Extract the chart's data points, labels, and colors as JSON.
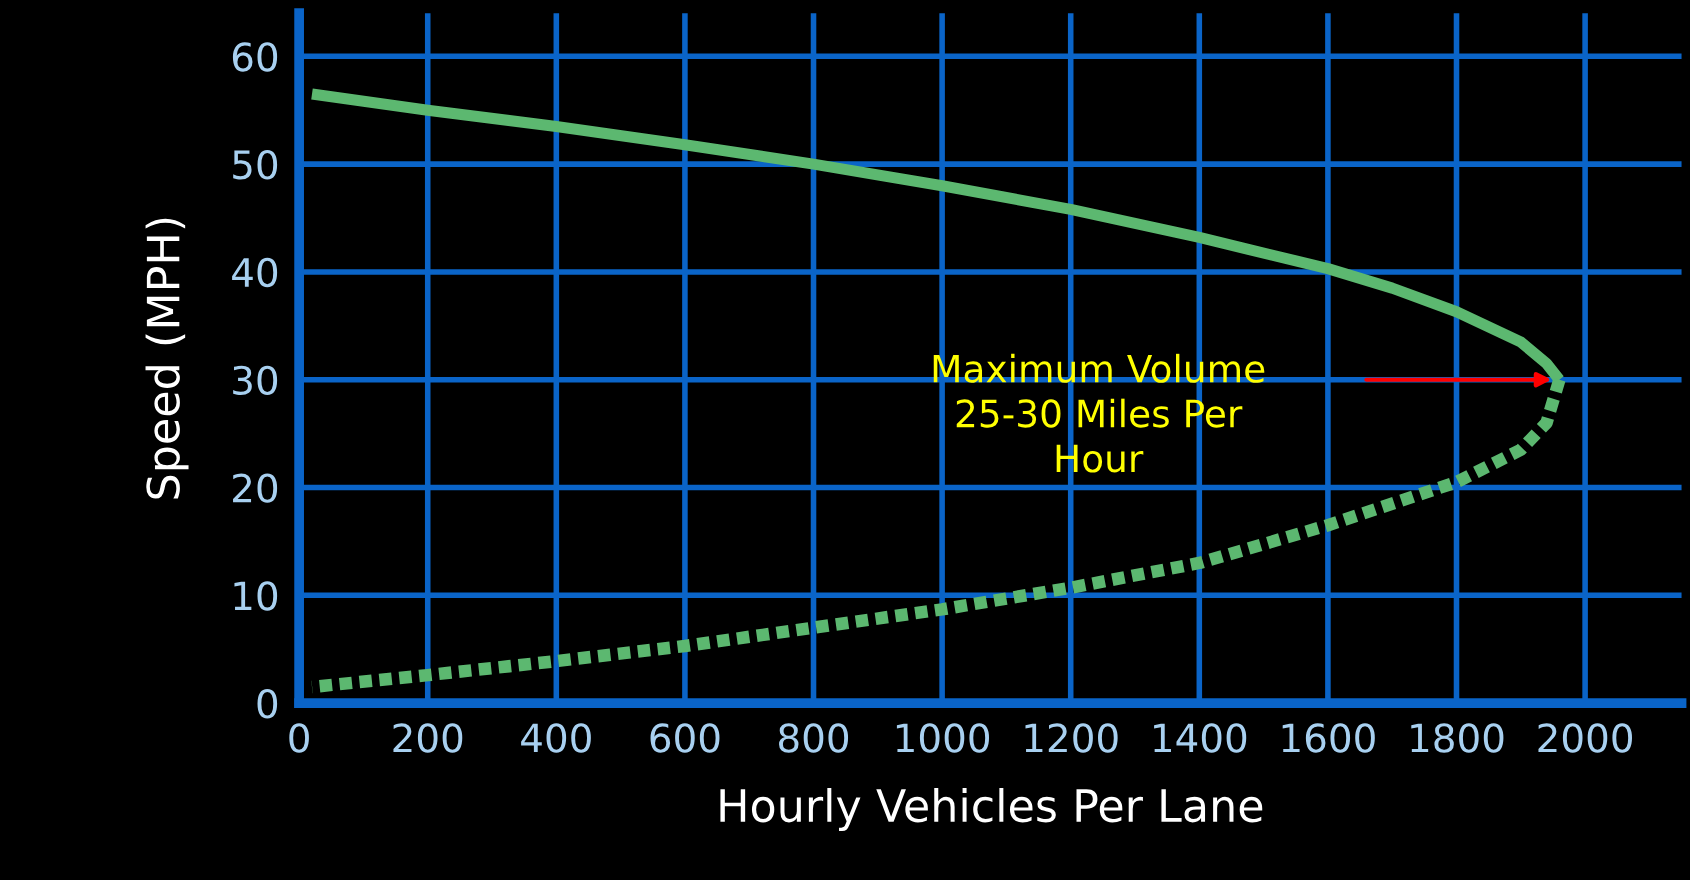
{
  "chart_data": {
    "type": "line",
    "xlabel": "Hourly Vehicles Per Lane",
    "ylabel": "Speed (MPH)",
    "series": [
      {
        "color": "#5cb870",
        "line_style": "solid",
        "x": [
          20,
          200,
          400,
          600,
          800,
          1000,
          1200,
          1400,
          1600,
          1700,
          1800,
          1900,
          1940,
          1960
        ],
        "values": [
          56.5,
          55,
          53.5,
          51.8,
          50,
          48,
          45.8,
          43.2,
          40.3,
          38.5,
          36.3,
          33.5,
          31.5,
          30
        ]
      },
      {
        "color": "#5cb870",
        "line_style": "dotted",
        "x": [
          1960,
          1940,
          1900,
          1800,
          1600,
          1400,
          1200,
          1000,
          800,
          600,
          400,
          200,
          20
        ],
        "values": [
          30,
          26,
          23.5,
          20.5,
          16.5,
          13,
          10.7,
          8.7,
          7,
          5.3,
          3.9,
          2.6,
          1.5
        ]
      }
    ],
    "xlim": [
      0,
      2150
    ],
    "ylim": [
      0,
      64
    ],
    "xticks": [
      0,
      200,
      400,
      600,
      800,
      1000,
      1200,
      1400,
      1600,
      1800,
      2000
    ],
    "yticks": [
      0,
      10,
      20,
      30,
      40,
      50,
      60
    ],
    "grid": true,
    "marker": "none",
    "legend": false,
    "annotations": [
      "Maximum Volume\n25-30 Miles Per\nHour"
    ]
  }
}
